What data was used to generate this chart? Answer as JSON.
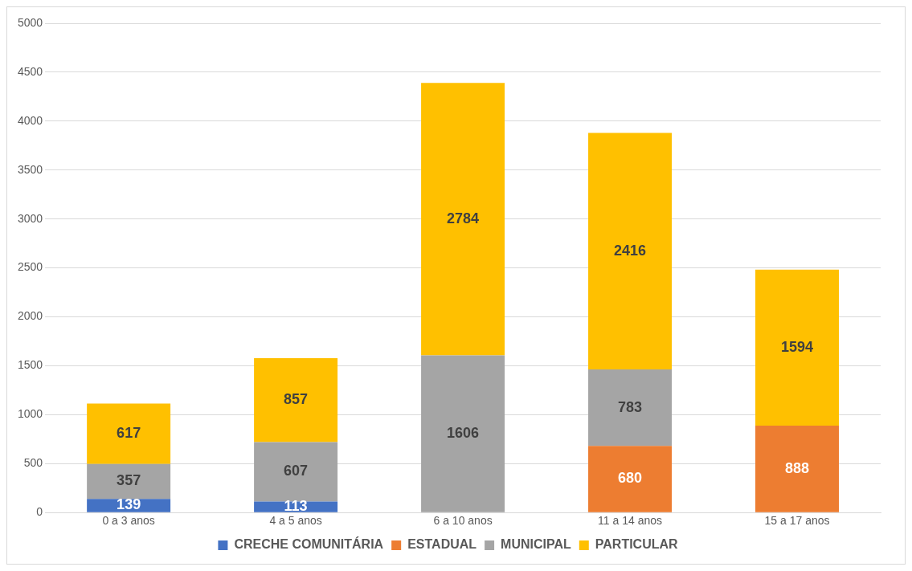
{
  "chart_data": {
    "type": "bar",
    "stacked": true,
    "categories": [
      "0 a 3 anos",
      "4 a 5 anos",
      "6 a 10 anos",
      "11 a 14 anos",
      "15 a 17 anos"
    ],
    "series": [
      {
        "name": "CRECHE COMUNITÁRIA",
        "color": "#4472c4",
        "values": [
          139,
          113,
          null,
          null,
          null
        ]
      },
      {
        "name": "ESTADUAL",
        "color": "#ed7d31",
        "values": [
          null,
          null,
          null,
          680,
          888
        ]
      },
      {
        "name": "MUNICIPAL",
        "color": "#a5a5a5",
        "values": [
          357,
          607,
          1606,
          783,
          null
        ]
      },
      {
        "name": "PARTICULAR",
        "color": "#ffc000",
        "values": [
          617,
          857,
          2784,
          2416,
          1594
        ]
      }
    ],
    "ylim": [
      0,
      5000
    ],
    "yticks": [
      0,
      500,
      1000,
      1500,
      2000,
      2500,
      3000,
      3500,
      4000,
      4500,
      5000
    ],
    "grid": "y",
    "legend": "bottom",
    "data_labels": true
  }
}
